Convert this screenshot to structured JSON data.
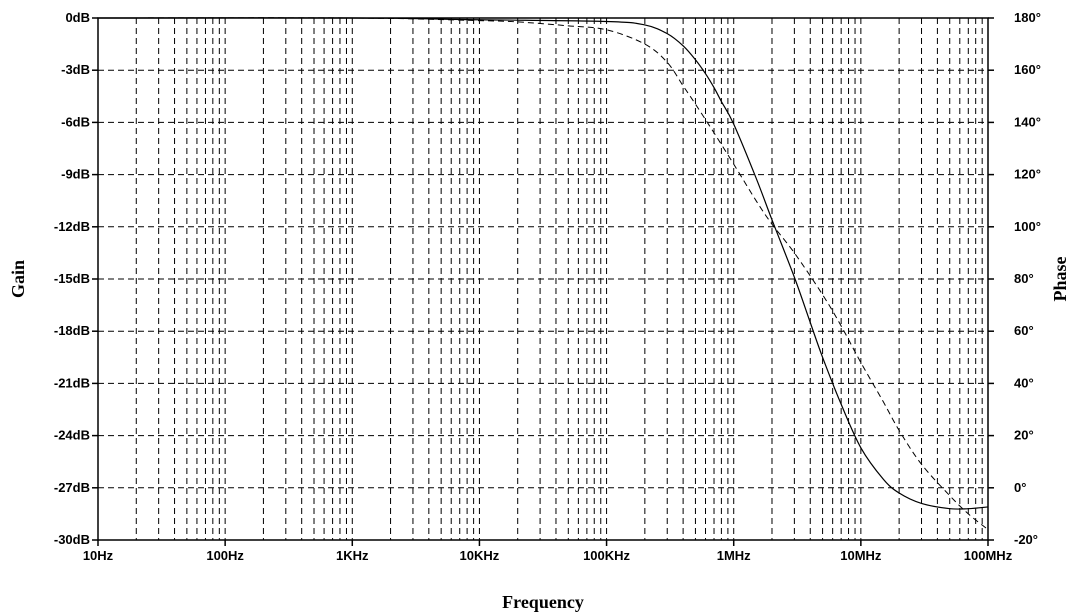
{
  "chart_data": {
    "type": "line",
    "title": "",
    "xlabel": "Frequency",
    "ylabel": "Gain",
    "y2label": "Phase",
    "xscale": "log",
    "xlim": [
      10,
      100000000
    ],
    "ylim": [
      -30,
      0
    ],
    "y2lim": [
      -20,
      180
    ],
    "grid": true,
    "x_ticks": [
      "10Hz",
      "100Hz",
      "1KHz",
      "10KHz",
      "100KHz",
      "1MHz",
      "10MHz",
      "100MHz"
    ],
    "y_ticks": [
      "0dB",
      "-3dB",
      "-6dB",
      "-9dB",
      "-12dB",
      "-15dB",
      "-18dB",
      "-21dB",
      "-24dB",
      "-27dB",
      "-30dB"
    ],
    "y2_ticks": [
      "180°",
      "160°",
      "140°",
      "120°",
      "100°",
      "80°",
      "60°",
      "40°",
      "20°",
      "0°",
      "-20°"
    ],
    "series": [
      {
        "axis": "left",
        "style": "solid",
        "x": [
          10,
          1000,
          10000,
          100000,
          200000,
          300000,
          400000,
          500000,
          600000,
          700000,
          800000,
          1000000,
          1500000,
          2000000,
          3000000,
          4000000,
          5000000,
          7000000,
          10000000,
          15000000,
          20000000,
          30000000,
          50000000,
          70000000,
          100000000
        ],
        "y": [
          0,
          0,
          -0.1,
          -0.2,
          -0.4,
          -0.9,
          -1.6,
          -2.4,
          -3.2,
          -4.0,
          -4.8,
          -6.1,
          -9.2,
          -11.6,
          -14.9,
          -17.5,
          -19.5,
          -22.2,
          -24.7,
          -26.5,
          -27.3,
          -27.9,
          -28.2,
          -28.2,
          -28.1
        ]
      },
      {
        "axis": "right",
        "style": "dashed",
        "x": [
          10,
          1000,
          10000,
          20000,
          50000,
          100000,
          200000,
          300000,
          400000,
          500000,
          700000,
          1000000,
          1500000,
          2000000,
          3000000,
          5000000,
          7000000,
          10000000,
          15000000,
          20000000,
          30000000,
          50000000,
          70000000,
          100000000
        ],
        "y": [
          180,
          180,
          179,
          178.5,
          177,
          175.5,
          170,
          163,
          154,
          147,
          136,
          124,
          110,
          101,
          90,
          74,
          62,
          48,
          33,
          22,
          9,
          -3,
          -10,
          -16
        ]
      }
    ]
  }
}
